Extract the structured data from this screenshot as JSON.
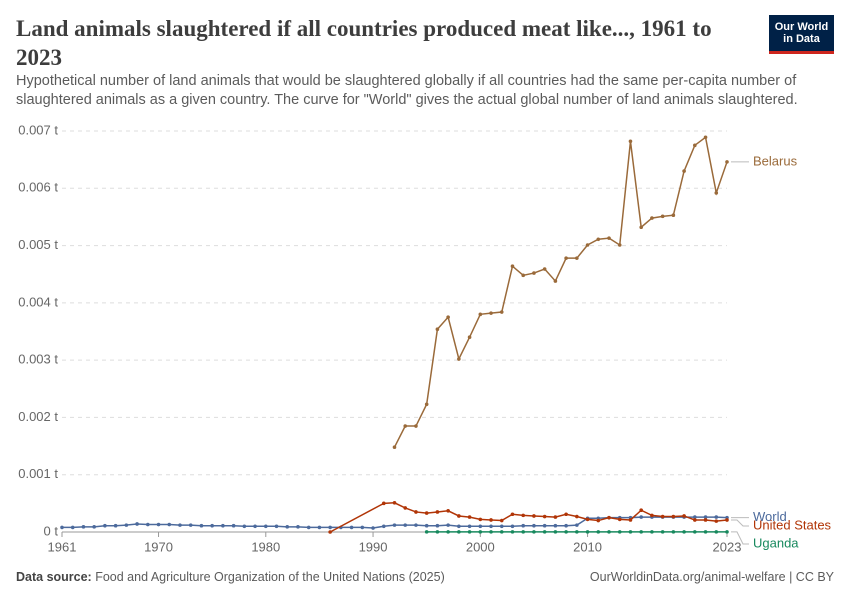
{
  "chart_data": {
    "type": "line",
    "title": "Land animals slaughtered if all countries produced meat like..., 1961 to 2023",
    "subtitle": "Hypothetical number of land animals that would be slaughtered globally if all countries had the same per-capita number of slaughtered animals as a given country. The curve for \"World\" gives the actual global number of land animals slaughtered.",
    "logo": [
      "Our World",
      "in Data"
    ],
    "source_label": "Data source:",
    "source": "Food and Agriculture Organization of the United Nations (2025)",
    "credit": "OurWorldinData.org/animal-welfare | CC BY",
    "xlim": [
      1961,
      2023
    ],
    "xticks": [
      1961,
      1970,
      1980,
      1990,
      2000,
      2010,
      2023
    ],
    "ylim": [
      0,
      0.007
    ],
    "yticks": [
      {
        "value": 0,
        "label": "0 t"
      },
      {
        "value": 0.001,
        "label": "0.001 t"
      },
      {
        "value": 0.002,
        "label": "0.002 t"
      },
      {
        "value": 0.003,
        "label": "0.003 t"
      },
      {
        "value": 0.004,
        "label": "0.004 t"
      },
      {
        "value": 0.005,
        "label": "0.005 t"
      },
      {
        "value": 0.006,
        "label": "0.006 t"
      },
      {
        "value": 0.007,
        "label": "0.007 t"
      }
    ],
    "grid": true,
    "series": [
      {
        "name": "Belarus",
        "color": "#9a6a3a",
        "x": [
          1992,
          1993,
          1994,
          1995,
          1996,
          1997,
          1998,
          1999,
          2000,
          2001,
          2002,
          2003,
          2004,
          2005,
          2006,
          2007,
          2008,
          2009,
          2010,
          2011,
          2012,
          2013,
          2014,
          2015,
          2016,
          2017,
          2018,
          2019,
          2020,
          2021,
          2022,
          2023
        ],
        "values": [
          0.00148,
          0.00185,
          0.00185,
          0.00223,
          0.00354,
          0.00375,
          0.00302,
          0.0034,
          0.0038,
          0.00382,
          0.00384,
          0.00464,
          0.00448,
          0.00452,
          0.00459,
          0.00438,
          0.00478,
          0.00478,
          0.00501,
          0.00511,
          0.00513,
          0.00501,
          0.00682,
          0.00532,
          0.00548,
          0.00551,
          0.00553,
          0.0063,
          0.00675,
          0.00689,
          0.00592,
          0.00646
        ]
      },
      {
        "name": "World",
        "color": "#4c6a9c",
        "x": [
          1961,
          1962,
          1963,
          1964,
          1965,
          1966,
          1967,
          1968,
          1969,
          1970,
          1971,
          1972,
          1973,
          1974,
          1975,
          1976,
          1977,
          1978,
          1979,
          1980,
          1981,
          1982,
          1983,
          1984,
          1985,
          1986,
          1987,
          1988,
          1989,
          1990,
          1991,
          1992,
          1993,
          1994,
          1995,
          1996,
          1997,
          1998,
          1999,
          2000,
          2001,
          2002,
          2003,
          2004,
          2005,
          2006,
          2007,
          2008,
          2009,
          2010,
          2011,
          2012,
          2013,
          2014,
          2015,
          2016,
          2017,
          2018,
          2019,
          2020,
          2021,
          2022,
          2023
        ],
        "values": [
          8e-05,
          8e-05,
          9e-05,
          9e-05,
          0.00011,
          0.00011,
          0.00012,
          0.00014,
          0.00013,
          0.00013,
          0.00013,
          0.00012,
          0.00012,
          0.00011,
          0.00011,
          0.00011,
          0.00011,
          0.0001,
          0.0001,
          0.0001,
          0.0001,
          9e-05,
          9e-05,
          8e-05,
          8e-05,
          8e-05,
          8e-05,
          8e-05,
          8e-05,
          7e-05,
          0.0001,
          0.00012,
          0.00012,
          0.00012,
          0.00011,
          0.00011,
          0.00012,
          0.0001,
          0.0001,
          0.0001,
          0.0001,
          0.0001,
          0.0001,
          0.00011,
          0.00011,
          0.00011,
          0.00011,
          0.00011,
          0.00012,
          0.00024,
          0.00024,
          0.00025,
          0.00025,
          0.00025,
          0.00026,
          0.00026,
          0.00026,
          0.00026,
          0.00026,
          0.00026,
          0.00026,
          0.00026,
          0.00025
        ]
      },
      {
        "name": "United States",
        "color": "#b13507",
        "x": [
          1986,
          1991,
          1992,
          1993,
          1994,
          1995,
          1996,
          1997,
          1998,
          1999,
          2000,
          2001,
          2002,
          2003,
          2004,
          2005,
          2006,
          2007,
          2008,
          2009,
          2010,
          2011,
          2012,
          2013,
          2014,
          2015,
          2016,
          2017,
          2018,
          2019,
          2020,
          2021,
          2022,
          2023
        ],
        "values": [
          0,
          0.0005,
          0.00051,
          0.00042,
          0.00035,
          0.00033,
          0.00035,
          0.00037,
          0.00028,
          0.00026,
          0.00022,
          0.00021,
          0.0002,
          0.00031,
          0.00029,
          0.00028,
          0.00027,
          0.00026,
          0.00031,
          0.00027,
          0.00022,
          0.0002,
          0.00025,
          0.00022,
          0.00021,
          0.00038,
          0.00029,
          0.00027,
          0.00027,
          0.00028,
          0.00021,
          0.00021,
          0.00019,
          0.00021
        ]
      },
      {
        "name": "Uganda",
        "color": "#18895e",
        "x": [
          1995,
          1996,
          1997,
          1998,
          1999,
          2000,
          2001,
          2002,
          2003,
          2004,
          2005,
          2006,
          2007,
          2008,
          2009,
          2010,
          2011,
          2012,
          2013,
          2014,
          2015,
          2016,
          2017,
          2018,
          2019,
          2020,
          2021,
          2022,
          2023
        ],
        "values": [
          2e-06,
          2e-06,
          2e-06,
          2e-06,
          2e-06,
          2e-06,
          2e-06,
          2e-06,
          2e-06,
          2e-06,
          2e-06,
          2e-06,
          2e-06,
          2e-06,
          2e-06,
          2e-06,
          2e-06,
          2e-06,
          2e-06,
          2e-06,
          2e-06,
          2e-06,
          2e-06,
          2e-06,
          2e-06,
          2e-06,
          2e-06,
          2e-06,
          2e-06
        ]
      }
    ]
  }
}
